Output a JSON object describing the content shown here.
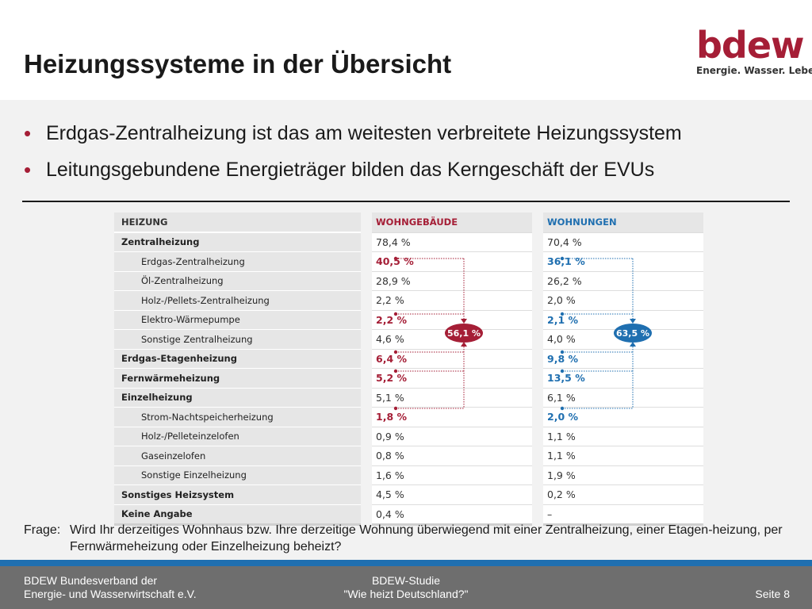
{
  "header": {
    "title": "Heizungssysteme in der Übersicht",
    "logo_word": "bdew",
    "logo_tagline": "Energie. Wasser. Leben."
  },
  "bullets": [
    "Erdgas-Zentralheizung ist das am weitesten verbreitete Heizungssystem",
    "Leitungsgebundene Energieträger bilden das Kerngeschäft der EVUs"
  ],
  "table": {
    "headers": {
      "label": "HEIZUNG",
      "wohngebaeude": "WOHNGEBÄUDE",
      "wohnungen": "WOHNUNGEN"
    },
    "rows": [
      {
        "label": "Zentralheizung",
        "wg": "78,4 %",
        "wn": "70,4 %"
      },
      {
        "label": "Erdgas-Zentralheizung",
        "wg": "40,5 %",
        "wn": "36,1 %"
      },
      {
        "label": "Öl-Zentralheizung",
        "wg": "28,9 %",
        "wn": "26,2 %"
      },
      {
        "label": "Holz-/Pellets-Zentralheizung",
        "wg": "2,2 %",
        "wn": "2,0 %"
      },
      {
        "label": "Elektro-Wärmepumpe",
        "wg": "2,2 %",
        "wn": "2,1 %"
      },
      {
        "label": "Sonstige Zentralheizung",
        "wg": "4,6 %",
        "wn": "4,0 %"
      },
      {
        "label": "Erdgas-Etagenheizung",
        "wg": "6,4 %",
        "wn": "9,8 %"
      },
      {
        "label": "Fernwärmeheizung",
        "wg": "5,2 %",
        "wn": "13,5 %"
      },
      {
        "label": "Einzelheizung",
        "wg": "5,1 %",
        "wn": "6,1 %"
      },
      {
        "label": "Strom-Nachtspeicherheizung",
        "wg": "1,8 %",
        "wn": "2,0 %"
      },
      {
        "label": "Holz-/Pelleteinzelofen",
        "wg": "0,9 %",
        "wn": "1,1 %"
      },
      {
        "label": "Gaseinzelofen",
        "wg": "0,8 %",
        "wn": "1,1 %"
      },
      {
        "label": "Sonstige Einzelheizung",
        "wg": "1,6 %",
        "wn": "1,9 %"
      },
      {
        "label": "Sonstiges Heizsystem",
        "wg": "4,5 %",
        "wn": "0,2 %"
      },
      {
        "label": "Keine Angabe",
        "wg": "0,4 %",
        "wn": "–"
      }
    ],
    "sum_wohngebaeude": "56,1 %",
    "sum_wohnungen": "63,5 %"
  },
  "question": {
    "label": "Frage:",
    "text": "Wird Ihr derzeitiges Wohnhaus bzw. Ihre derzeitige Wohnung überwiegend mit einer Zentralheizung, einer Etagen-heizung, per Fernwärmeheizung oder Einzelheizung beheizt?"
  },
  "footer": {
    "left_line1": "BDEW Bundesverband der",
    "left_line2": "Energie- und Wasserwirtschaft e.V.",
    "mid_line1": "BDEW-Studie",
    "mid_line2": "\"Wie heizt Deutschland?\"",
    "page": "Seite 8"
  },
  "colors": {
    "accent_red": "#a51e36",
    "accent_blue": "#1f6fb0",
    "footer_gray": "#6e6e6e"
  }
}
